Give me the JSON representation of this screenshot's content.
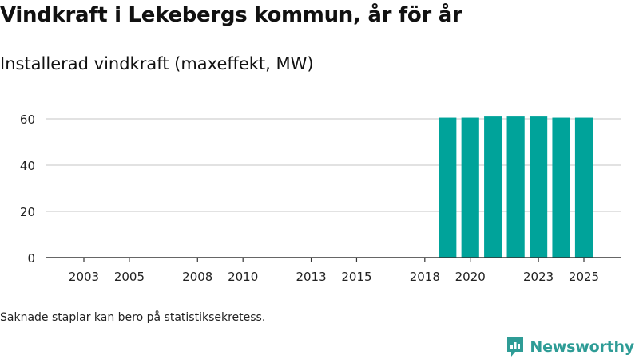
{
  "header": {
    "title": "Vindkraft i Lekebergs kommun, år för år",
    "subtitle": "Installerad vindkraft (maxeffekt, MW)"
  },
  "footer": {
    "note": "Saknade staplar kan bero på statistiksekretess.",
    "brand": "Newsworthy",
    "brand_icon": "newsworthy-logo-icon"
  },
  "colors": {
    "bar": "#00a39a",
    "grid": "#d9d9d9",
    "axis": "#333333",
    "brand": "#2e9c96"
  },
  "chart_data": {
    "type": "bar",
    "title": "Vindkraft i Lekebergs kommun, år för år",
    "subtitle": "Installerad vindkraft (maxeffekt, MW)",
    "xlabel": "",
    "ylabel": "",
    "categories": [
      2003,
      2004,
      2005,
      2006,
      2007,
      2008,
      2009,
      2010,
      2011,
      2012,
      2013,
      2014,
      2015,
      2016,
      2017,
      2018,
      2019,
      2020,
      2021,
      2022,
      2023,
      2024,
      2025
    ],
    "values": [
      null,
      null,
      null,
      null,
      null,
      null,
      null,
      null,
      null,
      null,
      null,
      null,
      null,
      null,
      null,
      null,
      60.5,
      60.5,
      61,
      61,
      61,
      60.5,
      60.5
    ],
    "xticks": [
      "2003",
      "2005",
      "2008",
      "2010",
      "2013",
      "2015",
      "2018",
      "2020",
      "2023",
      "2025"
    ],
    "yticks": [
      0,
      20,
      40,
      60
    ],
    "ylim": [
      0,
      70
    ],
    "grid": true,
    "legend": "none"
  }
}
